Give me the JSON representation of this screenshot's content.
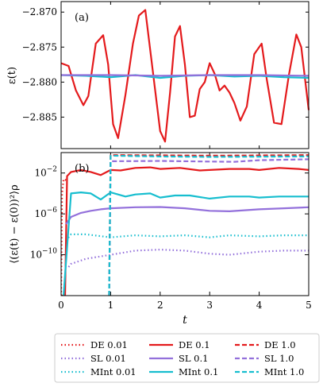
{
  "chart_data": [
    {
      "type": "line",
      "panel_label": "(a)",
      "ylabel": "ε(t)",
      "xlim": [
        0,
        5
      ],
      "ylim": [
        -2.8895,
        -2.8685
      ],
      "yticks": [
        -2.87,
        -2.875,
        -2.88,
        -2.885
      ],
      "ytick_labels": [
        "−2.870",
        "−2.875",
        "−2.880",
        "−2.885"
      ],
      "series": [
        {
          "color": "#e41a1c",
          "dash": "solid",
          "x": [
            0,
            0.15,
            0.3,
            0.45,
            0.55,
            0.7,
            0.85,
            0.95,
            1.05,
            1.15,
            1.3,
            1.45,
            1.57,
            1.7,
            1.85,
            2.0,
            2.1,
            2.2,
            2.3,
            2.4,
            2.5,
            2.6,
            2.7,
            2.8,
            2.9,
            3.0,
            3.1,
            3.2,
            3.3,
            3.4,
            3.5,
            3.62,
            3.75,
            3.9,
            4.05,
            4.15,
            4.3,
            4.45,
            4.6,
            4.75,
            4.85,
            5.0
          ],
          "y": [
            -2.8773,
            -2.8777,
            -2.8812,
            -2.8833,
            -2.882,
            -2.8745,
            -2.8733,
            -2.8775,
            -2.886,
            -2.888,
            -2.8818,
            -2.8745,
            -2.8705,
            -2.8697,
            -2.8783,
            -2.887,
            -2.8885,
            -2.8815,
            -2.8735,
            -2.872,
            -2.8775,
            -2.885,
            -2.8848,
            -2.881,
            -2.88,
            -2.8773,
            -2.8788,
            -2.8812,
            -2.8805,
            -2.8815,
            -2.883,
            -2.8855,
            -2.8835,
            -2.876,
            -2.8745,
            -2.8795,
            -2.8858,
            -2.886,
            -2.879,
            -2.8732,
            -2.875,
            -2.884
          ]
        },
        {
          "color": "#17becf",
          "dash": "solid",
          "x": [
            0,
            0.5,
            1.0,
            1.5,
            2.0,
            2.5,
            3.0,
            3.5,
            4.0,
            4.5,
            5.0
          ],
          "y": [
            -2.879,
            -2.8791,
            -2.8793,
            -2.879,
            -2.8794,
            -2.8791,
            -2.879,
            -2.8792,
            -2.8791,
            -2.8793,
            -2.8794
          ]
        },
        {
          "color": "#9370db",
          "dash": "solid",
          "x": [
            0,
            1.0,
            2.0,
            3.0,
            4.0,
            5.0
          ],
          "y": [
            -2.879,
            -2.879,
            -2.8791,
            -2.879,
            -2.879,
            -2.8791
          ]
        }
      ]
    },
    {
      "type": "line",
      "panel_label": "(b)",
      "ylabel": "⟨(ε(t) − ε(0))²⟩ρ",
      "xlabel": "t",
      "xlim": [
        0,
        5
      ],
      "ylim_exp": [
        -14,
        0
      ],
      "yscale": "log",
      "xticks": [
        0,
        1,
        2,
        3,
        4,
        5
      ],
      "xtick_labels": [
        "0",
        "1",
        "2",
        "3",
        "4",
        "5"
      ],
      "ytick_exps": [
        -2,
        -6,
        -10
      ],
      "ytick_labels": [
        "10−2",
        "10−6",
        "10−10"
      ],
      "series": [
        {
          "name": "DE 0.01",
          "color": "#e41a1c",
          "dash": "dotted",
          "x": [
            0,
            0.02,
            0.05,
            0.1
          ],
          "y_exp": [
            -14,
            -4,
            -2.6,
            -2.7
          ]
        },
        {
          "name": "SL 0.01",
          "color": "#9370db",
          "dash": "dotted",
          "x": [
            0.15,
            0.2,
            0.5,
            1.0,
            1.5,
            2.0,
            2.5,
            3.0,
            3.4,
            4.0,
            4.5,
            5.0
          ],
          "y_exp": [
            -11.2,
            -10.9,
            -10.4,
            -10.0,
            -9.6,
            -9.5,
            -9.6,
            -9.9,
            -10.0,
            -9.7,
            -9.6,
            -9.6
          ]
        },
        {
          "name": "MInt 0.01",
          "color": "#17becf",
          "dash": "dotted",
          "x": [
            0.1,
            0.2,
            0.5,
            1.0,
            1.5,
            2.0,
            2.5,
            3.0,
            3.4,
            4.0,
            4.5,
            5.0
          ],
          "y_exp": [
            -8.6,
            -8.0,
            -8.0,
            -8.3,
            -8.1,
            -8.2,
            -8.1,
            -8.3,
            -8.1,
            -8.2,
            -8.1,
            -8.1
          ]
        },
        {
          "name": "DE 0.1",
          "color": "#e41a1c",
          "dash": "solid",
          "x": [
            0,
            0.08,
            0.12,
            0.2,
            0.4,
            0.6,
            0.8,
            1.0,
            1.2,
            1.5,
            1.8,
            2.0,
            2.4,
            2.8,
            3.0,
            3.4,
            3.8,
            4.0,
            4.4,
            4.8,
            5.0
          ],
          "y_exp": [
            -14,
            -14,
            -2.3,
            -1.9,
            -1.7,
            -1.9,
            -2.2,
            -1.7,
            -1.75,
            -1.5,
            -1.45,
            -1.6,
            -1.5,
            -1.75,
            -1.7,
            -1.6,
            -1.6,
            -1.7,
            -1.5,
            -1.6,
            -1.7
          ]
        },
        {
          "name": "SL 0.1",
          "color": "#9370db",
          "dash": "solid",
          "x": [
            0.1,
            0.2,
            0.4,
            0.6,
            0.8,
            1.0,
            1.5,
            2.0,
            2.5,
            3.0,
            3.4,
            4.0,
            4.5,
            5.0
          ],
          "y_exp": [
            -7.0,
            -6.3,
            -5.9,
            -5.7,
            -5.55,
            -5.45,
            -5.35,
            -5.33,
            -5.45,
            -5.7,
            -5.75,
            -5.55,
            -5.45,
            -5.35
          ]
        },
        {
          "name": "MInt 0.1",
          "color": "#17becf",
          "dash": "solid",
          "x": [
            0.05,
            0.2,
            0.4,
            0.6,
            0.8,
            1.0,
            1.3,
            1.5,
            1.8,
            2.0,
            2.3,
            2.6,
            3.0,
            3.4,
            3.8,
            4.0,
            4.4,
            4.8,
            5.0
          ],
          "y_exp": [
            -14,
            -4.0,
            -3.9,
            -4.0,
            -4.6,
            -3.9,
            -4.3,
            -4.1,
            -4.0,
            -4.4,
            -4.2,
            -4.2,
            -4.5,
            -4.3,
            -4.3,
            -4.4,
            -4.3,
            -4.3,
            -4.3
          ]
        },
        {
          "name": "DE 1.0",
          "color": "#e41a1c",
          "dash": "dashed",
          "x": [
            0.97,
            1.0,
            2.0,
            3.0,
            4.0,
            5.0
          ],
          "y_exp": [
            -14,
            -0.25,
            -0.27,
            -0.3,
            -0.28,
            -0.25
          ]
        },
        {
          "name": "SL 1.0",
          "color": "#9370db",
          "dash": "dashed",
          "x": [
            0.97,
            1.0,
            2.0,
            3.0,
            3.5,
            4.0,
            5.0
          ],
          "y_exp": [
            -14,
            -0.85,
            -0.82,
            -0.88,
            -0.9,
            -0.75,
            -0.65
          ]
        },
        {
          "name": "MInt 1.0",
          "color": "#17becf",
          "dash": "dashed",
          "x": [
            0.97,
            1.0,
            2.0,
            3.0,
            4.0,
            5.0
          ],
          "y_exp": [
            -14,
            -0.3,
            -0.38,
            -0.42,
            -0.4,
            -0.37
          ]
        }
      ]
    }
  ],
  "legend": {
    "columns": [
      [
        "DE 0.01",
        "SL 0.01",
        "MInt 0.01"
      ],
      [
        "DE 0.1",
        "SL 0.1",
        "MInt 0.1"
      ],
      [
        "DE 1.0",
        "SL 1.0",
        "MInt 1.0"
      ]
    ]
  }
}
